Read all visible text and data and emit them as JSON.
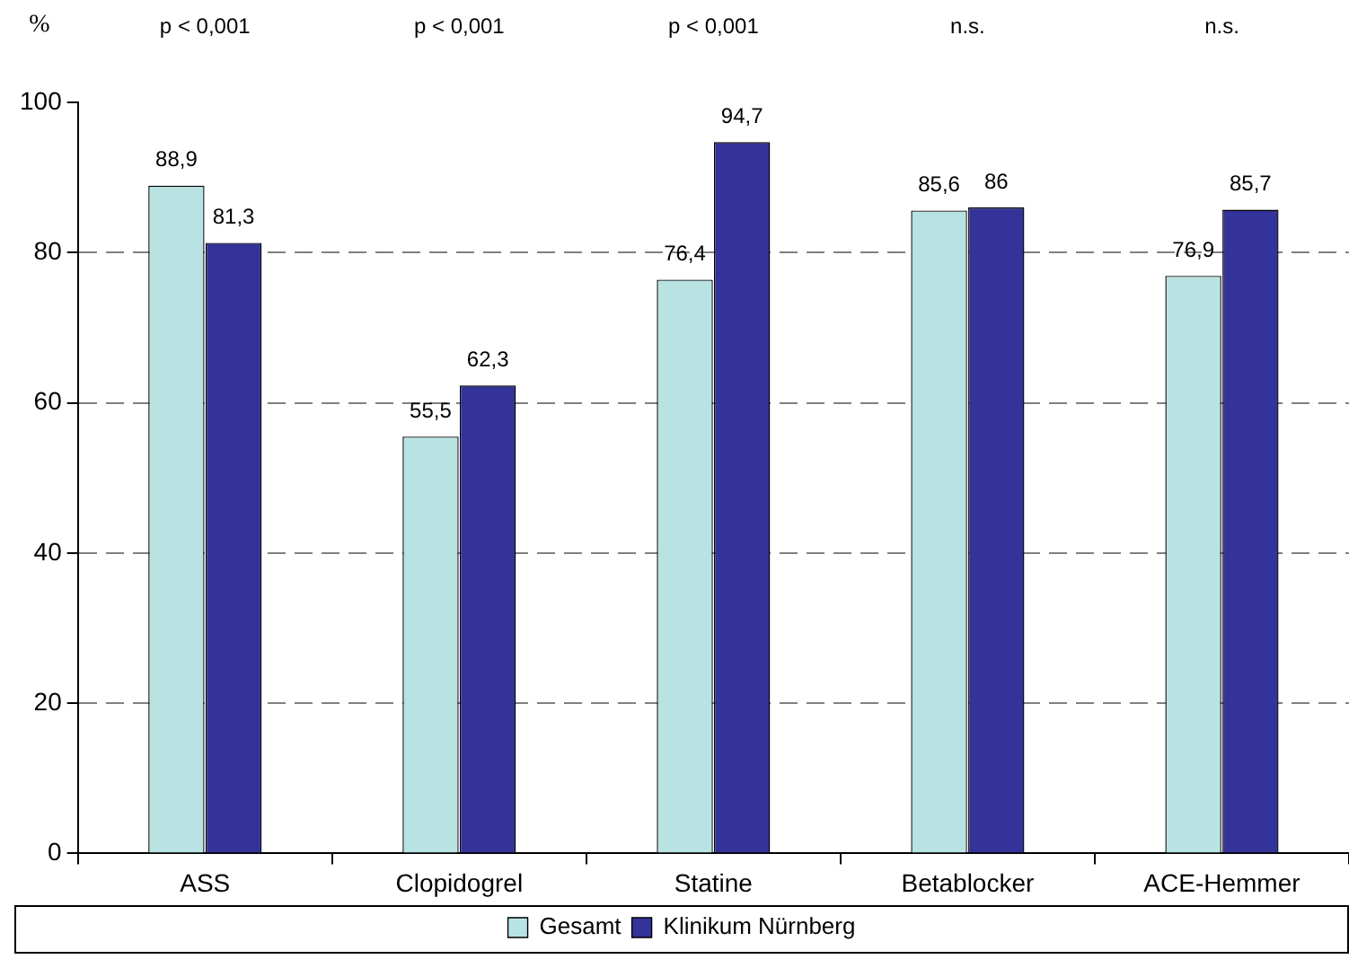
{
  "chart_data": {
    "type": "bar",
    "ylabel": "%",
    "categories": [
      "ASS",
      "Clopidogrel",
      "Statine",
      "Betablocker",
      "ACE-Hemmer"
    ],
    "series": [
      {
        "name": "Gesamt",
        "color": "#b9e3e3",
        "values": [
          88.9,
          55.5,
          76.4,
          85.6,
          76.9
        ],
        "value_labels": [
          "88,9",
          "55,5",
          "76,4",
          "85,6",
          "76,9"
        ]
      },
      {
        "name": "Klinikum Nürnberg",
        "color": "#333399",
        "values": [
          81.3,
          62.3,
          94.7,
          86,
          85.7
        ],
        "value_labels": [
          "81,3",
          "62,3",
          "94,7",
          "86",
          "85,7"
        ]
      }
    ],
    "annotations": [
      "p < 0,001",
      "p < 0,001",
      "p < 0,001",
      "n.s.",
      "n.s."
    ],
    "ylim": [
      0,
      100
    ],
    "yticks": [
      0,
      20,
      40,
      60,
      80,
      100
    ],
    "grid": "y",
    "legend": "bottom"
  }
}
